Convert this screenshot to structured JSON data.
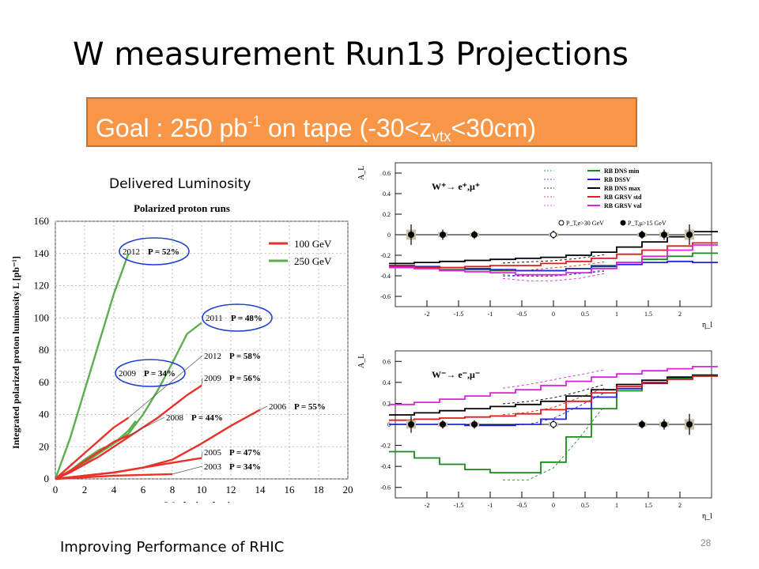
{
  "slide": {
    "title": "W measurement  Run13 Projections",
    "goal_prefix": "Goal : 250 pb",
    "goal_sup": "-1",
    "goal_mid": " on tape (-30<z",
    "goal_sub": "vtx",
    "goal_suffix": "<30cm)",
    "delivered_label": "Delivered Luminosity",
    "footer": "Improving Performance of RHIC",
    "page_number": "28"
  },
  "chart_data": [
    {
      "type": "line",
      "title": "Polarized proton runs",
      "xlabel": "Weeks in physics",
      "ylabel": "Integrated polarized proton luminosity L [pb⁻¹]",
      "xlim": [
        0,
        20
      ],
      "ylim": [
        0,
        160
      ],
      "xticks": [
        0,
        2,
        4,
        6,
        8,
        10,
        12,
        14,
        16,
        18,
        20
      ],
      "yticks": [
        0,
        20,
        40,
        60,
        80,
        100,
        120,
        140,
        160
      ],
      "grid": true,
      "legend": {
        "placement": "top-right",
        "entries": [
          {
            "label": "100 GeV",
            "color": "#e8322a"
          },
          {
            "label": "250 GeV",
            "color": "#5cae4e"
          }
        ]
      },
      "series": [
        {
          "name": "250 GeV",
          "label": "2012",
          "pol": "P = 52%",
          "color": "#5cae4e",
          "circled": true,
          "x": [
            0,
            1,
            2,
            3,
            4,
            5
          ],
          "y": [
            0,
            25,
            55,
            85,
            115,
            140
          ]
        },
        {
          "name": "250 GeV",
          "label": "2011",
          "pol": "P = 48%",
          "color": "#5cae4e",
          "circled": true,
          "x": [
            0,
            1,
            2,
            3,
            4,
            5,
            6,
            7,
            8,
            9,
            10
          ],
          "y": [
            0,
            5,
            12,
            18,
            22,
            28,
            40,
            55,
            72,
            90,
            97
          ]
        },
        {
          "name": "250 GeV",
          "label": "2009",
          "pol": "P = 34%",
          "color": "#5cae4e",
          "circled": true,
          "x": [
            0,
            1,
            2,
            3,
            4,
            5,
            5.5
          ],
          "y": [
            0,
            5,
            10,
            16,
            22,
            30,
            36
          ]
        },
        {
          "name": "100 GeV",
          "label": "2012",
          "pol": "P = 58%",
          "color": "#e8322a",
          "x": [
            0,
            1,
            2,
            3,
            4,
            5
          ],
          "y": [
            0,
            8,
            16,
            24,
            32,
            38
          ]
        },
        {
          "name": "100 GeV",
          "label": "2009",
          "pol": "P = 56%",
          "color": "#e8322a",
          "x": [
            0,
            1,
            2,
            3,
            4,
            5,
            6,
            7,
            8,
            9,
            10
          ],
          "y": [
            0,
            4,
            9,
            14,
            20,
            26,
            32,
            38,
            45,
            52,
            58
          ]
        },
        {
          "name": "100 GeV",
          "label": "2008",
          "pol": "P = 44%",
          "color": "#e8322a",
          "x": [
            0,
            1,
            2,
            3,
            4,
            5
          ],
          "y": [
            0,
            5,
            11,
            17,
            23,
            27
          ]
        },
        {
          "name": "100 GeV",
          "label": "2006",
          "pol": "P = 55%",
          "color": "#e8322a",
          "x": [
            0,
            2,
            4,
            6,
            8,
            10,
            12,
            14
          ],
          "y": [
            0,
            2,
            4,
            7,
            12,
            22,
            33,
            43
          ]
        },
        {
          "name": "100 GeV",
          "label": "2005",
          "pol": "P = 47%",
          "color": "#e8322a",
          "x": [
            0,
            2,
            4,
            6,
            8,
            10
          ],
          "y": [
            0,
            2,
            4,
            7,
            10,
            13
          ]
        },
        {
          "name": "100 GeV",
          "label": "2003",
          "pol": "P = 34%",
          "color": "#e8322a",
          "x": [
            0,
            2,
            4,
            6,
            8
          ],
          "y": [
            0,
            1,
            2,
            2.5,
            3
          ]
        }
      ]
    },
    {
      "type": "line",
      "title": "W⁺→ e⁺,μ⁺",
      "xlabel": "η_l",
      "ylabel": "A_L",
      "xlim": [
        -2.5,
        2.5
      ],
      "ylim": [
        -0.7,
        0.7
      ],
      "xticks": [
        -2,
        -1.5,
        -1,
        -0.5,
        0,
        0.5,
        1,
        1.5,
        2
      ],
      "yticks": [
        -0.6,
        -0.4,
        -0.2,
        0,
        0.2,
        0.4,
        0.6
      ],
      "legend": {
        "placement": "top-right",
        "entries": [
          {
            "label": "RB DNS min",
            "color": "#1a8a1a"
          },
          {
            "label": "RB DSSV",
            "color": "#2424d6"
          },
          {
            "label": "RB DNS max",
            "color": "#000000"
          },
          {
            "label": "RB GRSV std",
            "color": "#e01b1b"
          },
          {
            "label": "RB GRSV val",
            "color": "#e020e0"
          },
          {
            "label": "P_T,e>30 GeV",
            "marker": "open"
          },
          {
            "label": "P_T,μ>15 GeV",
            "marker": "filled"
          }
        ]
      },
      "x": [
        -2.4,
        -2,
        -1.6,
        -1.2,
        -0.8,
        -0.4,
        0,
        0.4,
        0.8,
        1.2,
        1.6,
        2,
        2.4
      ],
      "series": [
        {
          "name": "RB DNS min",
          "color": "#1a8a1a",
          "y": [
            -0.32,
            -0.33,
            -0.34,
            -0.34,
            -0.35,
            -0.35,
            -0.35,
            -0.33,
            -0.3,
            -0.27,
            -0.24,
            -0.21,
            -0.18
          ]
        },
        {
          "name": "RB DSSV",
          "color": "#2424d6",
          "y": [
            -0.3,
            -0.31,
            -0.32,
            -0.33,
            -0.34,
            -0.35,
            -0.35,
            -0.33,
            -0.31,
            -0.29,
            -0.27,
            -0.26,
            -0.27
          ]
        },
        {
          "name": "RB DNS max",
          "color": "#000000",
          "y": [
            -0.28,
            -0.27,
            -0.26,
            -0.25,
            -0.24,
            -0.23,
            -0.22,
            -0.2,
            -0.17,
            -0.12,
            -0.07,
            -0.02,
            0.03
          ]
        },
        {
          "name": "RB GRSV std",
          "color": "#e01b1b",
          "y": [
            -0.31,
            -0.32,
            -0.32,
            -0.31,
            -0.3,
            -0.3,
            -0.28,
            -0.26,
            -0.23,
            -0.19,
            -0.15,
            -0.11,
            -0.08
          ]
        },
        {
          "name": "RB GRSV val",
          "color": "#e020e0",
          "y": [
            -0.32,
            -0.33,
            -0.35,
            -0.36,
            -0.37,
            -0.39,
            -0.39,
            -0.37,
            -0.33,
            -0.27,
            -0.21,
            -0.15,
            -0.1
          ]
        }
      ],
      "points": [
        {
          "x": -2.25,
          "y": 0,
          "err": 0.1,
          "open": false
        },
        {
          "x": -1.75,
          "y": 0,
          "err": 0.05,
          "open": false
        },
        {
          "x": -1.25,
          "y": 0,
          "err": 0.04,
          "open": false
        },
        {
          "x": 0,
          "y": 0,
          "err": 0.04,
          "open": true
        },
        {
          "x": 1.4,
          "y": 0,
          "err": 0.04,
          "open": false
        },
        {
          "x": 1.75,
          "y": 0,
          "err": 0.05,
          "open": false
        },
        {
          "x": 2.15,
          "y": 0,
          "err": 0.1,
          "open": false
        }
      ]
    },
    {
      "type": "line",
      "title": "W⁻→ e⁻,μ⁻",
      "xlabel": "η_l",
      "ylabel": "A_L",
      "xlim": [
        -2.5,
        2.5
      ],
      "ylim": [
        -0.7,
        0.7
      ],
      "xticks": [
        -2,
        -1.5,
        -1,
        -0.5,
        0,
        0.5,
        1,
        1.5,
        2
      ],
      "yticks": [
        -0.6,
        -0.4,
        -0.2,
        0,
        0.2,
        0.4,
        0.6
      ],
      "x": [
        -2.4,
        -2,
        -1.6,
        -1.2,
        -0.8,
        -0.4,
        0,
        0.4,
        0.8,
        1.2,
        1.6,
        2,
        2.4
      ],
      "series": [
        {
          "name": "RB DNS min",
          "color": "#1a8a1a",
          "y": [
            -0.26,
            -0.32,
            -0.38,
            -0.43,
            -0.46,
            -0.46,
            -0.36,
            -0.12,
            0.15,
            0.32,
            0.4,
            0.44,
            0.46
          ]
        },
        {
          "name": "RB DSSV",
          "color": "#2424d6",
          "y": [
            0.0,
            0.0,
            0.0,
            -0.01,
            -0.01,
            0.0,
            0.05,
            0.15,
            0.26,
            0.34,
            0.39,
            0.43,
            0.46
          ]
        },
        {
          "name": "RB DNS max",
          "color": "#000000",
          "y": [
            0.09,
            0.11,
            0.13,
            0.15,
            0.17,
            0.19,
            0.22,
            0.27,
            0.33,
            0.38,
            0.42,
            0.45,
            0.47
          ]
        },
        {
          "name": "RB GRSV std",
          "color": "#e01b1b",
          "y": [
            0.04,
            0.05,
            0.06,
            0.07,
            0.08,
            0.1,
            0.14,
            0.22,
            0.3,
            0.36,
            0.4,
            0.43,
            0.46
          ]
        },
        {
          "name": "RB GRSV val",
          "color": "#e020e0",
          "y": [
            0.19,
            0.21,
            0.24,
            0.27,
            0.3,
            0.33,
            0.37,
            0.41,
            0.45,
            0.48,
            0.51,
            0.53,
            0.55
          ]
        }
      ],
      "points": [
        {
          "x": -2.25,
          "y": 0,
          "err": 0.08,
          "open": false
        },
        {
          "x": -1.75,
          "y": 0,
          "err": 0.04,
          "open": false
        },
        {
          "x": -1.25,
          "y": 0,
          "err": 0.04,
          "open": false
        },
        {
          "x": 0,
          "y": 0,
          "err": 0.04,
          "open": true
        },
        {
          "x": 1.4,
          "y": 0,
          "err": 0.04,
          "open": false
        },
        {
          "x": 1.75,
          "y": 0,
          "err": 0.05,
          "open": false
        },
        {
          "x": 2.15,
          "y": 0,
          "err": 0.1,
          "open": false
        }
      ]
    }
  ]
}
